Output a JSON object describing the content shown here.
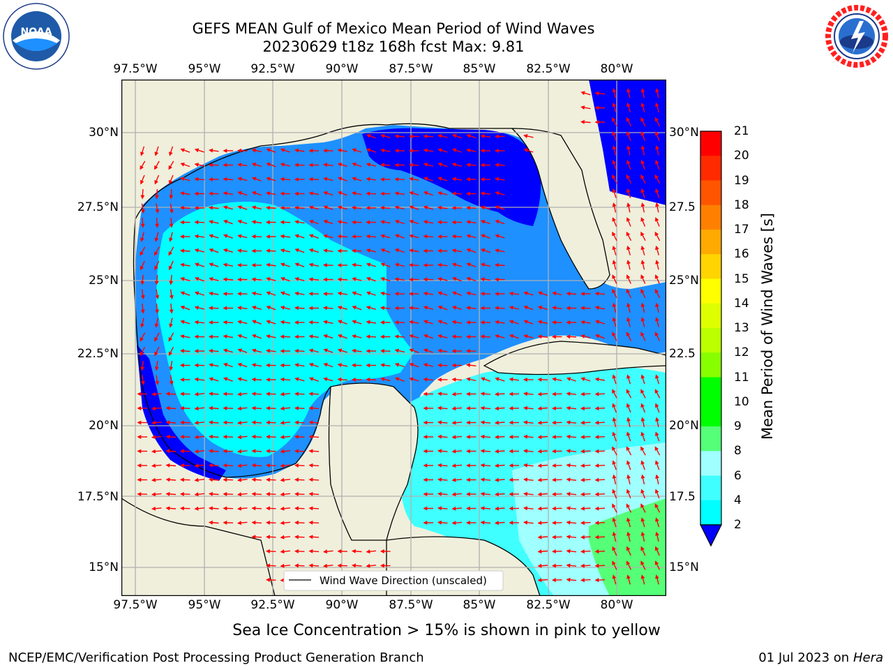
{
  "header": {
    "title_line1": "GEFS MEAN Gulf of Mexico Mean Period of Wind Waves",
    "title_line2": "20230629 t18z 168h fcst   Max: 9.81"
  },
  "logos": {
    "left": "NOAA",
    "left_ring_text": "NATIONAL OCEANIC AND ATMOSPHERIC ADMINISTRATION · U.S. DEPARTMENT OF COMMERCE",
    "right_ring_text": "NATIONAL WEATHER SERVICE"
  },
  "map": {
    "lon_labels": [
      "97.5°W",
      "95°W",
      "92.5°W",
      "90°W",
      "87.5°W",
      "85°W",
      "82.5°W",
      "80°W"
    ],
    "lat_labels_left": [
      "30°N",
      "27.5°N",
      "25°N",
      "22.5°N",
      "20°N",
      "17.5°N",
      "15°N"
    ],
    "lat_labels_right": [
      "30°N",
      "27.5",
      "25°N",
      "22.5",
      "20°N",
      "17.5",
      "15°N"
    ],
    "legend_label": "Wind Wave Direction (unscaled)",
    "colors": {
      "land": "#efefdc",
      "ocean_2_4": "#1e90ff",
      "ocean_lt2": "#0000ff",
      "ocean_4_6": "#00ffff",
      "ocean_6_8": "#40ffff",
      "ocean_8_9": "#a0ffff",
      "ocean_9_10": "#55ff77",
      "arrow": "#ff0000",
      "grid": "#b0b0b0"
    }
  },
  "colorbar": {
    "label": "Mean Period of Wind Waves [s]",
    "ticks": [
      "21",
      "20",
      "19",
      "18",
      "17",
      "16",
      "15",
      "14",
      "13",
      "12",
      "11",
      "10",
      "9",
      "8",
      "6",
      "4",
      "2"
    ],
    "colors": [
      "#ff0000",
      "#ff2a00",
      "#ff5500",
      "#ff8000",
      "#ffaa00",
      "#ffd400",
      "#ffff00",
      "#ddff00",
      "#bbff00",
      "#88ff00",
      "#00ff00",
      "#00ff00",
      "#55ff77",
      "#a0ffff",
      "#40ffff",
      "#00ffff",
      "#1e90ff"
    ],
    "extend_color": "#0000ff"
  },
  "caption": "Sea Ice Concentration > 15% is shown in pink to yellow",
  "footer": {
    "left": "NCEP/EMC/Verification Post Processing Product Generation Branch",
    "date": "01 Jul 2023 on ",
    "machine": "Hera"
  }
}
